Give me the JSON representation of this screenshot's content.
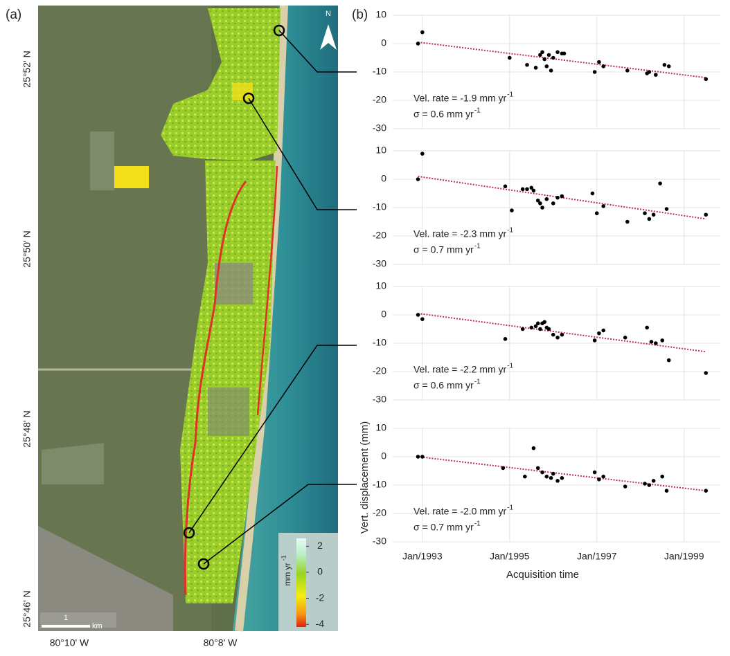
{
  "panel_label_b": "(b)",
  "map": {
    "panel_label": "(a)",
    "north": "N",
    "lat_labels": [
      "25°52' N",
      "25°50' N",
      "25°48' N",
      "25°46' N"
    ],
    "lon_labels": [
      "80°10' W",
      "80°8' W"
    ],
    "scale_label": "1",
    "scale_unit": "km",
    "colorbar": {
      "title": "mm yr",
      "title_sup": "-1",
      "lim": [
        -4.2,
        2.6
      ],
      "ticks": [
        2,
        0,
        -2,
        -4
      ]
    }
  },
  "chart_data": [
    {
      "type": "scatter",
      "color": "#000000",
      "xlim": [
        1992.32,
        1999.83
      ],
      "ylim": [
        -30,
        10
      ],
      "xticks": [
        1993,
        1995,
        1997,
        1999
      ],
      "yticks": [
        10,
        0,
        -10,
        -20,
        -30
      ],
      "grid": true,
      "annotations": [
        "Vel. rate = -1.9 mm yr",
        "σ = 0.6 mm yr"
      ],
      "annotation_sup": "-1",
      "trend": {
        "color": "#c0304a",
        "x": [
          1992.9,
          1999.5
        ],
        "values": [
          0.5,
          -12
        ]
      },
      "x": [
        1992.9,
        1993.0,
        1995.0,
        1995.4,
        1995.6,
        1995.7,
        1995.75,
        1995.8,
        1995.85,
        1995.9,
        1995.95,
        1996.0,
        1996.1,
        1996.2,
        1996.25,
        1996.95,
        1997.05,
        1997.15,
        1997.7,
        1998.15,
        1998.2,
        1998.35,
        1998.55,
        1998.65,
        1999.5
      ],
      "values": [
        0,
        4,
        -5,
        -7.5,
        -8.5,
        -4,
        -3,
        -5.5,
        -8,
        -4,
        -9.5,
        -5,
        -3,
        -3.5,
        -3.5,
        -10,
        -6.5,
        -8,
        -9.5,
        -10.5,
        -10,
        -11,
        -7.5,
        -8,
        -12.5
      ]
    },
    {
      "type": "scatter",
      "color": "#000000",
      "xlim": [
        1992.32,
        1999.83
      ],
      "ylim": [
        -30,
        10
      ],
      "xticks": [
        1993,
        1995,
        1997,
        1999
      ],
      "yticks": [
        10,
        0,
        -10,
        -20,
        -30
      ],
      "grid": true,
      "annotations": [
        "Vel. rate = -2.3 mm yr",
        "σ = 0.7 mm yr"
      ],
      "annotation_sup": "-1",
      "trend": {
        "color": "#c0304a",
        "x": [
          1992.9,
          1999.5
        ],
        "values": [
          1.0,
          -14
        ]
      },
      "x": [
        1992.9,
        1993.0,
        1994.9,
        1995.05,
        1995.3,
        1995.4,
        1995.5,
        1995.55,
        1995.65,
        1995.7,
        1995.75,
        1995.85,
        1996.0,
        1996.1,
        1996.2,
        1996.9,
        1997.0,
        1997.15,
        1997.7,
        1998.1,
        1998.2,
        1998.3,
        1998.45,
        1998.6,
        1999.5
      ],
      "values": [
        0,
        9,
        -2.5,
        -11,
        -3.5,
        -3.5,
        -3,
        -4,
        -7.5,
        -8.5,
        -10,
        -7,
        -8.5,
        -6.5,
        -6,
        -5,
        -12,
        -9.5,
        -15,
        -12,
        -14,
        -12.5,
        -1.5,
        -10.5,
        -12.5
      ]
    },
    {
      "type": "scatter",
      "color": "#000000",
      "xlim": [
        1992.32,
        1999.83
      ],
      "ylim": [
        -30,
        10
      ],
      "xticks": [
        1993,
        1995,
        1997,
        1999
      ],
      "yticks": [
        10,
        0,
        -10,
        -20,
        -30
      ],
      "grid": true,
      "annotations": [
        "Vel. rate = -2.2 mm yr",
        "σ = 0.6 mm yr"
      ],
      "annotation_sup": "-1",
      "trend": {
        "color": "#c0304a",
        "x": [
          1992.9,
          1999.5
        ],
        "values": [
          0.5,
          -13
        ]
      },
      "x": [
        1992.9,
        1993.0,
        1994.9,
        1995.3,
        1995.5,
        1995.6,
        1995.65,
        1995.7,
        1995.75,
        1995.8,
        1995.85,
        1995.9,
        1996.0,
        1996.1,
        1996.2,
        1996.95,
        1997.05,
        1997.15,
        1997.65,
        1998.15,
        1998.25,
        1998.35,
        1998.5,
        1998.65,
        1999.5
      ],
      "values": [
        0,
        -1.5,
        -8.5,
        -5,
        -4.5,
        -4,
        -3,
        -5,
        -3,
        -2.5,
        -4.5,
        -5,
        -7,
        -8,
        -7,
        -9,
        -6.5,
        -5.5,
        -8,
        -4.5,
        -9.5,
        -10,
        -9,
        -16,
        -20.5
      ]
    },
    {
      "type": "scatter",
      "color": "#000000",
      "xlim": [
        1992.32,
        1999.83
      ],
      "ylim": [
        -30,
        10
      ],
      "xticks": [
        {
          "value": 1993,
          "label": "Jan/1993"
        },
        {
          "value": 1995,
          "label": "Jan/1995"
        },
        {
          "value": 1997,
          "label": "Jan/1997"
        },
        {
          "value": 1999,
          "label": "Jan/1999"
        }
      ],
      "yticks": [
        10,
        0,
        -10,
        -20,
        -30
      ],
      "grid": true,
      "x_label": "Acquisition time",
      "y_label": "Vert. displacement (mm)",
      "annotations": [
        "Vel. rate = -2.0 mm yr",
        "σ = 0.7 mm yr"
      ],
      "annotation_sup": "-1",
      "trend": {
        "color": "#c0304a",
        "x": [
          1992.9,
          1999.5
        ],
        "values": [
          0,
          -12
        ]
      },
      "x": [
        1992.9,
        1993.0,
        1994.85,
        1995.35,
        1995.55,
        1995.65,
        1995.75,
        1995.85,
        1995.95,
        1996.0,
        1996.1,
        1996.2,
        1996.95,
        1997.05,
        1997.15,
        1997.65,
        1998.1,
        1998.2,
        1998.3,
        1998.5,
        1998.6,
        1999.5
      ],
      "values": [
        0,
        0,
        -4,
        -7,
        3,
        -4,
        -5.5,
        -7,
        -7.5,
        -6,
        -8.5,
        -7.5,
        -5.5,
        -8,
        -7,
        -10.5,
        -9.5,
        -10,
        -8.5,
        -7,
        -12,
        -12
      ]
    }
  ]
}
